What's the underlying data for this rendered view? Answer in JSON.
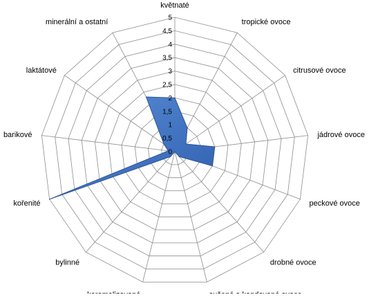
{
  "chart_data": {
    "type": "radar",
    "categories": [
      "květnaté",
      "tropické ovoce",
      "citrusové ovoce",
      "jádrové ovoce",
      "peckové ovoce",
      "drobné ovoce",
      "sušené a kandované ovoce",
      "karamelizované",
      "bylinné",
      "kořenité",
      "barikové",
      "laktátové",
      "minerální a ostatní"
    ],
    "series": [
      {
        "values": [
          2.0,
          1.0,
          0.5,
          1.5,
          1.5,
          0.25,
          0,
          0,
          0.25,
          5.0,
          0.25,
          0.5,
          2.3
        ],
        "color": "#4A7CC9"
      }
    ],
    "rlim": [
      0,
      5
    ],
    "ticks": [
      "0",
      "0,5",
      "1",
      "1,5",
      "2",
      "2,5",
      "3",
      "3,5",
      "4",
      "4,5",
      "5"
    ],
    "grid": true,
    "legend": "none"
  }
}
